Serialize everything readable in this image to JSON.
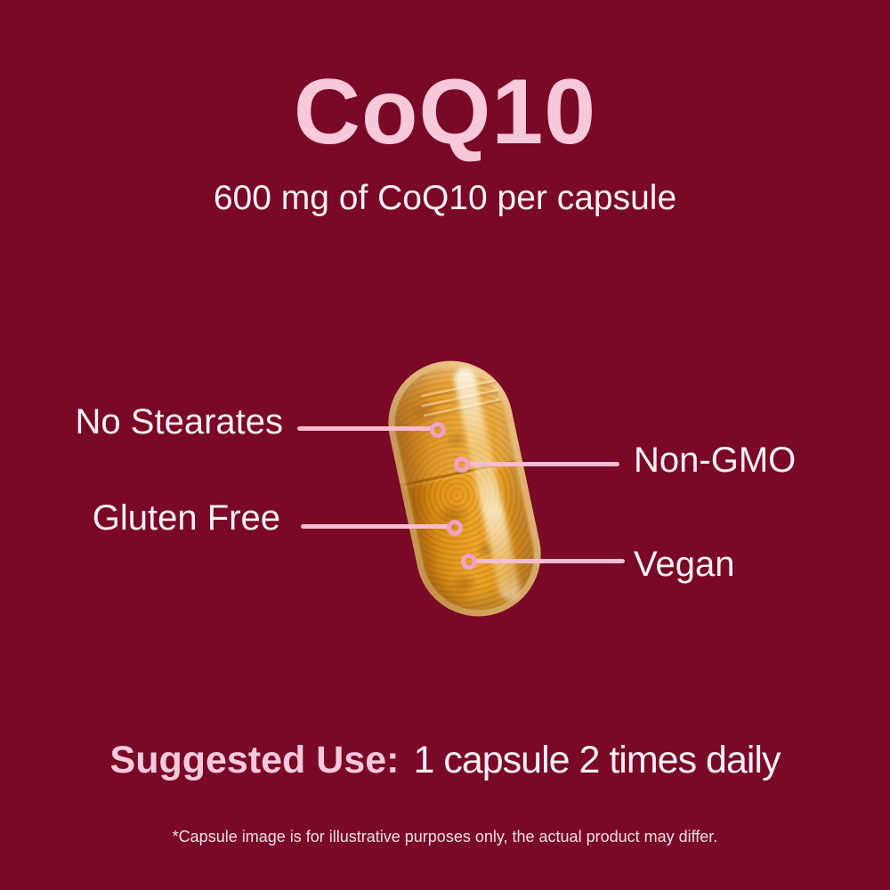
{
  "colors": {
    "background": "#7a0827",
    "accent_pink": "#f8c9da",
    "line_pink": "#f6bcd1",
    "ring_pink": "#f0a2c1",
    "text_white": "#fbf2f5",
    "capsule_orange": "#e0941a"
  },
  "header": {
    "title": "CoQ10",
    "subtitle": "600 mg of CoQ10 per capsule"
  },
  "capsule": {
    "description": "orange CoQ10 capsule, tilted, translucent shell with powder inside"
  },
  "callouts": [
    {
      "label": "No Stearates",
      "side": "left"
    },
    {
      "label": "Non-GMO",
      "side": "right"
    },
    {
      "label": "Gluten Free",
      "side": "left"
    },
    {
      "label": "Vegan",
      "side": "right"
    }
  ],
  "suggested_use": {
    "label": "Suggested Use:",
    "value": "1 capsule 2 times daily"
  },
  "footnote": "*Capsule image is for illustrative purposes only, the actual product may differ."
}
